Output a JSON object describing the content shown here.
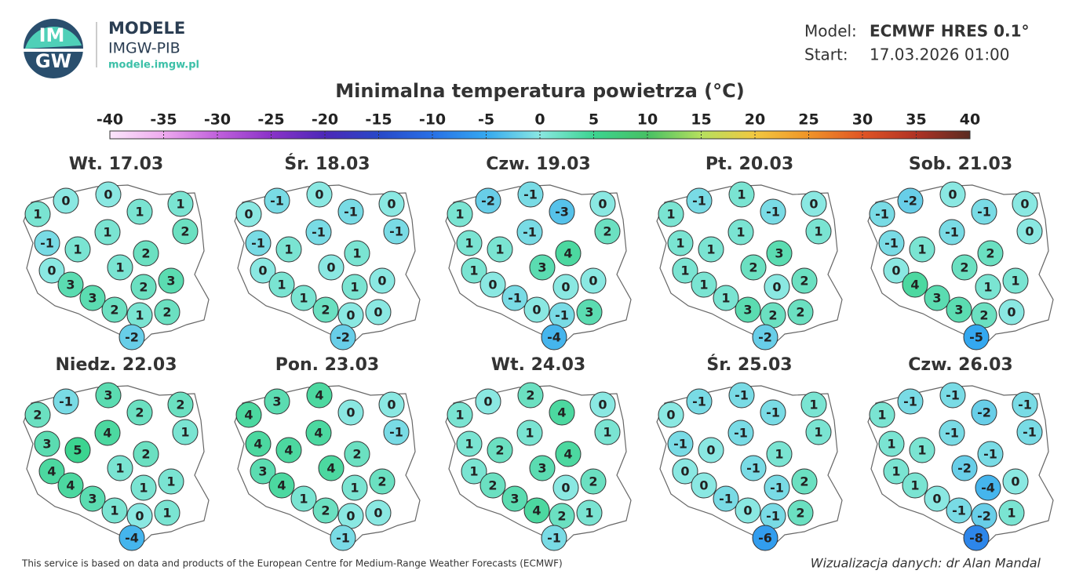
{
  "header": {
    "brand": "MODELE",
    "org": "IMGW-PIB",
    "url": "modele.imgw.pl",
    "logo_top": "IM",
    "logo_bottom": "GW",
    "model_label": "Model:",
    "model": "ECMWF HRES 0.1°",
    "start_label": "Start:",
    "start": "17.03.2026 01:00"
  },
  "title": "Minimalna temperatura powietrza (°C)",
  "colorbar": {
    "ticks": [
      -40,
      -35,
      -30,
      -25,
      -20,
      -15,
      -10,
      -5,
      0,
      5,
      10,
      15,
      20,
      25,
      30,
      35,
      40
    ],
    "colors": [
      "#fbe6fb",
      "#eeaaee",
      "#c060dc",
      "#8a32c8",
      "#4c28b8",
      "#2848c8",
      "#2870e6",
      "#34a8f0",
      "#8ae8e2",
      "#3cd490",
      "#46c064",
      "#b6e05e",
      "#f2c840",
      "#f09428",
      "#e05424",
      "#b03224",
      "#5a2c22"
    ]
  },
  "maps": [
    {
      "title": "Wt. 17.03",
      "values": [
        0,
        0,
        1,
        1,
        1,
        2,
        -1,
        1,
        1,
        2,
        0,
        1,
        3,
        3,
        2,
        3,
        2,
        1,
        2,
        -2
      ]
    },
    {
      "title": "Śr. 18.03",
      "values": [
        -1,
        0,
        0,
        -1,
        0,
        -1,
        -1,
        -1,
        1,
        1,
        0,
        0,
        1,
        0,
        1,
        1,
        2,
        0,
        0,
        -2
      ]
    },
    {
      "title": "Czw. 19.03",
      "values": [
        -2,
        -1,
        1,
        -3,
        0,
        2,
        1,
        -1,
        1,
        4,
        1,
        3,
        0,
        0,
        0,
        -1,
        0,
        -1,
        3,
        -4
      ]
    },
    {
      "title": "Pt. 20.03",
      "values": [
        -1,
        1,
        1,
        -1,
        0,
        1,
        1,
        1,
        1,
        3,
        1,
        2,
        1,
        2,
        0,
        1,
        3,
        2,
        2,
        -2
      ]
    },
    {
      "title": "Sob. 21.03",
      "values": [
        -2,
        0,
        -1,
        -1,
        0,
        0,
        -1,
        -1,
        1,
        2,
        0,
        2,
        4,
        1,
        1,
        3,
        3,
        2,
        0,
        -5
      ]
    },
    {
      "title": "Niedz. 22.03",
      "values": [
        -1,
        3,
        2,
        2,
        2,
        1,
        3,
        4,
        5,
        2,
        4,
        1,
        4,
        1,
        1,
        3,
        1,
        0,
        1,
        -4
      ]
    },
    {
      "title": "Pon. 23.03",
      "values": [
        3,
        4,
        4,
        0,
        0,
        -1,
        4,
        4,
        4,
        2,
        3,
        4,
        4,
        2,
        1,
        1,
        2,
        0,
        0,
        -1
      ]
    },
    {
      "title": "Wt. 24.03",
      "values": [
        0,
        2,
        1,
        4,
        0,
        1,
        1,
        1,
        2,
        4,
        1,
        3,
        2,
        2,
        0,
        3,
        4,
        2,
        1,
        -1
      ]
    },
    {
      "title": "Śr. 25.03",
      "values": [
        -1,
        -1,
        0,
        -1,
        1,
        1,
        -1,
        -1,
        0,
        1,
        0,
        -1,
        0,
        2,
        -1,
        -1,
        0,
        -1,
        2,
        -6
      ]
    },
    {
      "title": "Czw. 26.03",
      "values": [
        -1,
        -1,
        1,
        -2,
        -1,
        -1,
        1,
        -1,
        1,
        -1,
        1,
        -2,
        1,
        0,
        -4,
        0,
        -1,
        -2,
        1,
        -8
      ]
    }
  ],
  "footer": {
    "source": "This service is based on data and products of the European Centre for Medium-Range Weather Forecasts (ECMWF)",
    "credit": "Wizualizacja danych: dr Alan Mandal"
  }
}
